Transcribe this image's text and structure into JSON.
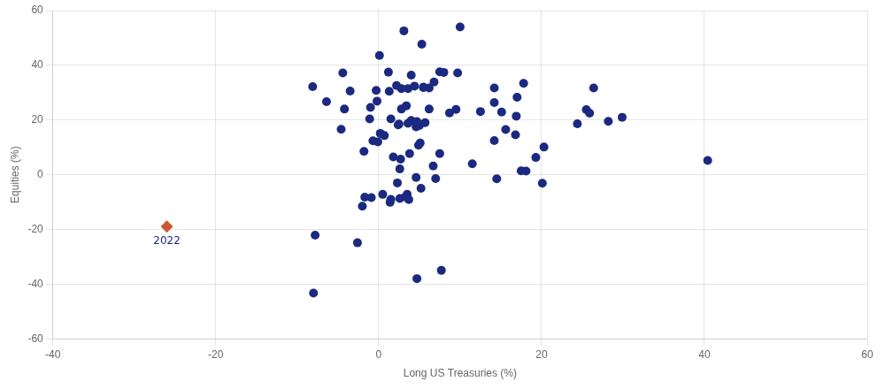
{
  "chart_data": {
    "type": "scatter",
    "xlabel": "Long US Treasuries (%)",
    "ylabel": "Equities (%)",
    "xlim": [
      -40,
      60
    ],
    "ylim": [
      -60,
      60
    ],
    "xticks": [
      -40,
      -20,
      0,
      20,
      40,
      60
    ],
    "yticks": [
      -60,
      -40,
      -20,
      0,
      20,
      40,
      60
    ],
    "grid": true,
    "series": [
      {
        "color": "#1b2a80",
        "marker": "circle",
        "values": [
          [
            5.1,
            11.6
          ],
          [
            1.2,
            37.5
          ],
          [
            0.1,
            43.6
          ],
          [
            -0.9,
            -8.4
          ],
          [
            -2.6,
            -24.9
          ],
          [
            -8.0,
            -43.3
          ],
          [
            -1.7,
            -8.2
          ],
          [
            10.0,
            54.0
          ],
          [
            7.0,
            -1.4
          ],
          [
            5.3,
            47.7
          ],
          [
            6.8,
            33.9
          ],
          [
            7.7,
            -35.0
          ],
          [
            5.5,
            31.9
          ],
          [
            4.7,
            -38.0
          ],
          [
            6.2,
            24.0
          ],
          [
            4.7,
            19.4
          ],
          [
            3.3,
            -8.1
          ],
          [
            2.7,
            5.7
          ],
          [
            1.5,
            20.4
          ],
          [
            2.4,
            18.2
          ],
          [
            -0.3,
            30.8
          ],
          [
            3.4,
            25.2
          ],
          [
            4.6,
            -1.0
          ],
          [
            -0.1,
            12.0
          ],
          [
            4.0,
            19.8
          ],
          [
            4.0,
            36.4
          ],
          [
            2.8,
            24.0
          ],
          [
            0.5,
            -7.2
          ],
          [
            4.6,
            17.5
          ],
          [
            -3.5,
            30.6
          ],
          [
            -1.0,
            24.6
          ],
          [
            8.7,
            22.6
          ],
          [
            14.2,
            12.5
          ],
          [
            3.6,
            31.5
          ],
          [
            2.3,
            -3.0
          ],
          [
            3.8,
            7.7
          ],
          [
            4.9,
            10.8
          ],
          [
            1.5,
            -9.0
          ],
          [
            -0.2,
            26.9
          ],
          [
            -1.8,
            8.5
          ],
          [
            11.5,
            4.0
          ],
          [
            0.7,
            14.3
          ],
          [
            5.7,
            19.0
          ],
          [
            16.8,
            14.6
          ],
          [
            2.6,
            -8.7
          ],
          [
            3.1,
            52.6
          ],
          [
            2.2,
            32.6
          ],
          [
            5.0,
            18.0
          ],
          [
            6.2,
            31.7
          ],
          [
            3.6,
            18.8
          ],
          [
            5.2,
            -5.0
          ],
          [
            5.5,
            32.0
          ],
          [
            15.6,
            16.5
          ],
          [
            -0.7,
            12.4
          ],
          [
            1.4,
            -10.1
          ],
          [
            -4.2,
            24.0
          ],
          [
            -2.0,
            -11.5
          ],
          [
            9.7,
            37.2
          ],
          [
            25.5,
            23.8
          ],
          [
            3.5,
            -7.2
          ],
          [
            1.8,
            6.5
          ],
          [
            2.5,
            18.5
          ],
          [
            4.4,
            32.4
          ],
          [
            17.5,
            1.4
          ],
          [
            -1.1,
            20.4
          ],
          [
            14.2,
            31.7
          ],
          [
            40.4,
            5.2
          ],
          [
            -4.6,
            16.6
          ],
          [
            26.4,
            31.7
          ],
          [
            24.4,
            18.6
          ],
          [
            20.1,
            -3.1
          ],
          [
            7.5,
            37.6
          ],
          [
            15.1,
            22.9
          ],
          [
            17.8,
            33.4
          ],
          [
            6.7,
            3.2
          ],
          [
            1.3,
            30.5
          ],
          [
            7.5,
            7.7
          ],
          [
            20.3,
            10.1
          ],
          [
            18.1,
            1.3
          ],
          [
            8.0,
            37.4
          ],
          [
            12.5,
            23.1
          ],
          [
            25.9,
            22.5
          ],
          [
            19.3,
            6.3
          ],
          [
            -8.1,
            32.2
          ],
          [
            17.0,
            28.3
          ],
          [
            29.9,
            21.0
          ],
          [
            3.7,
            -9.1
          ],
          [
            14.2,
            26.4
          ],
          [
            0.2,
            15.1
          ],
          [
            2.6,
            2.1
          ],
          [
            -4.4,
            37.2
          ],
          [
            9.5,
            23.9
          ],
          [
            14.5,
            -1.5
          ],
          [
            2.8,
            31.5
          ],
          [
            -6.4,
            26.7
          ],
          [
            28.2,
            19.5
          ],
          [
            16.9,
            21.4
          ],
          [
            -7.8,
            -22.1
          ]
        ]
      },
      {
        "color": "#cc5533",
        "marker": "diamond",
        "values": [
          [
            -26.0,
            -19.0
          ]
        ]
      }
    ],
    "annotations": [
      {
        "text": "2022",
        "x": -26.0,
        "y": -19.0,
        "color": "#1b2a80"
      }
    ]
  }
}
